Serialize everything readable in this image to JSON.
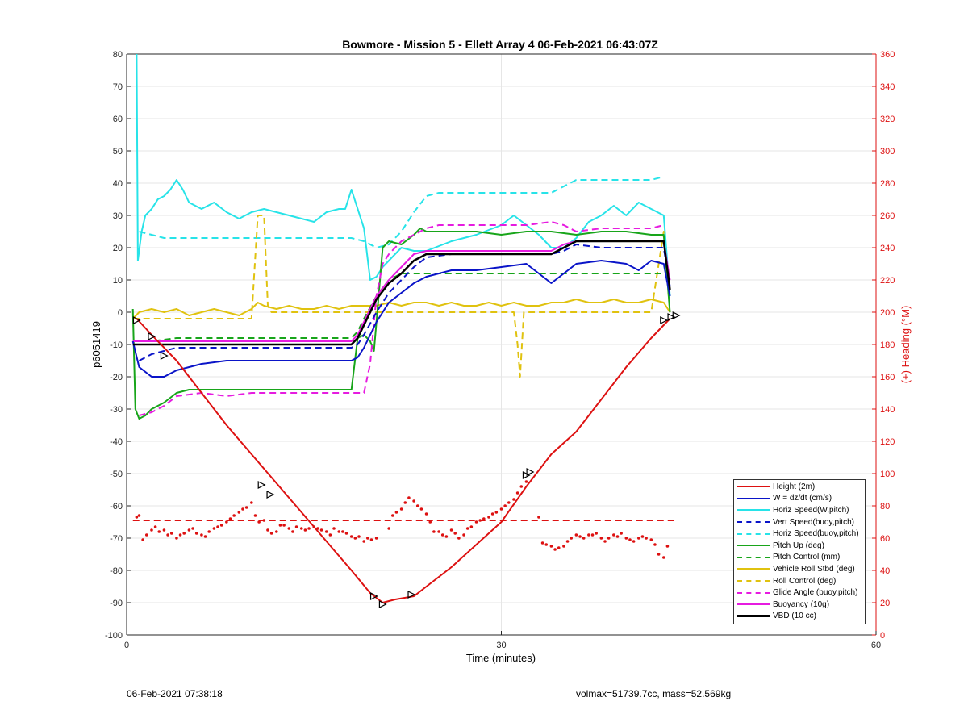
{
  "chart_data": {
    "type": "line",
    "title": "Bowmore - Mission 5 - Ellett Array 4 06-Feb-2021 06:43:07Z",
    "xlabel": "Time (minutes)",
    "ylabel": "p6051419",
    "y2label": "(+) Heading (°M)",
    "xlim": [
      0,
      60
    ],
    "ylim": [
      -100,
      80
    ],
    "y2lim": [
      0,
      360
    ],
    "x_ticks": [
      "0",
      "30",
      "60"
    ],
    "x_tick_values": [
      0,
      30,
      60
    ],
    "y_ticks": [
      80,
      70,
      60,
      50,
      40,
      30,
      20,
      10,
      0,
      -10,
      -20,
      -30,
      -40,
      -50,
      -60,
      -70,
      -80,
      -90,
      -100
    ],
    "y2_ticks": [
      360,
      340,
      320,
      300,
      280,
      260,
      240,
      220,
      200,
      180,
      160,
      140,
      120,
      100,
      80,
      60,
      40,
      20,
      0
    ],
    "grid": true,
    "legend_position": "bottom-right",
    "series": [
      {
        "name": "Height (2m)",
        "color": "#dd1111",
        "style": "solid",
        "width": 2,
        "x": [
          0.8,
          2,
          4,
          6,
          8,
          10,
          12,
          14,
          16,
          18,
          19.5,
          20.5,
          21.5,
          23,
          24,
          26,
          28,
          30,
          32,
          34,
          36,
          38,
          40,
          42,
          43.5
        ],
        "y": [
          -2,
          -7,
          -15,
          -25,
          -35,
          -44,
          -53,
          -62,
          -71,
          -80,
          -87,
          -90,
          -89,
          -88,
          -85,
          -79,
          -72,
          -65,
          -54,
          -44,
          -37,
          -27,
          -17,
          -8,
          -2
        ]
      },
      {
        "name": "W = dz/dt (cm/s)",
        "color": "#0a14c8",
        "style": "solid",
        "width": 2,
        "x": [
          0.5,
          1,
          2,
          3,
          4,
          6,
          8,
          10,
          12,
          14,
          16,
          18,
          18.5,
          19,
          20,
          21,
          22,
          23,
          24,
          25,
          26,
          28,
          30,
          32,
          33,
          34,
          35,
          36,
          38,
          40,
          41,
          42,
          43,
          43.5
        ],
        "y": [
          -9,
          -17,
          -20,
          -20,
          -18,
          -16,
          -15,
          -15,
          -15,
          -15,
          -15,
          -15,
          -14,
          -11,
          -3,
          3,
          6,
          9,
          11,
          12,
          13,
          13,
          14,
          15,
          12,
          9,
          12,
          15,
          16,
          15,
          13,
          16,
          15,
          5
        ]
      },
      {
        "name": "Horiz Speed(W,pitch)",
        "color": "#27e3e8",
        "style": "solid",
        "width": 2,
        "x": [
          0.8,
          0.9,
          1.2,
          1.5,
          2,
          2.5,
          3,
          3.5,
          4,
          4.5,
          5,
          6,
          7,
          8,
          9,
          10,
          11,
          12,
          14,
          15,
          16,
          17,
          17.5,
          18,
          19,
          19.5,
          20,
          20.5,
          21,
          22,
          23,
          24,
          26,
          28,
          30,
          31,
          32,
          33,
          34,
          35,
          36,
          37,
          38,
          39,
          40,
          41,
          42,
          43,
          43.5
        ],
        "y": [
          80,
          16,
          25,
          30,
          32,
          35,
          36,
          38,
          41,
          38,
          34,
          32,
          34,
          31,
          29,
          31,
          32,
          31,
          29,
          28,
          31,
          32,
          32,
          38,
          26,
          10,
          11,
          14,
          16,
          20,
          19,
          19,
          22,
          24,
          27,
          30,
          27,
          24,
          20,
          20,
          23,
          28,
          30,
          33,
          30,
          34,
          32,
          30,
          5
        ]
      },
      {
        "name": "Vert Speed(buoy,pitch)",
        "color": "#0a14c8",
        "style": "dashed",
        "width": 2,
        "x": [
          1,
          2,
          3,
          4,
          6,
          8,
          10,
          12,
          14,
          16,
          18,
          18.5,
          19,
          20,
          21,
          22,
          23,
          24,
          26,
          28,
          30,
          32,
          34,
          35,
          36,
          38,
          40,
          42,
          43,
          43.5
        ],
        "y": [
          -15,
          -13,
          -12,
          -11,
          -11,
          -11,
          -11,
          -11,
          -11,
          -11,
          -11,
          -10,
          -7,
          0,
          6,
          10,
          14,
          17,
          18,
          18,
          18,
          18,
          18,
          19,
          21,
          20,
          20,
          20,
          20,
          8
        ]
      },
      {
        "name": "Horiz Speed(buoy,pitch)",
        "color": "#27e3e8",
        "style": "dashed",
        "width": 2,
        "x": [
          1,
          2,
          3,
          4,
          6,
          8,
          10,
          12,
          14,
          16,
          18,
          19,
          20,
          21,
          22,
          23,
          24,
          25,
          26,
          28,
          30,
          32,
          34,
          35,
          36,
          38,
          40,
          42,
          43
        ],
        "y": [
          25,
          24,
          23,
          23,
          23,
          23,
          23,
          23,
          23,
          23,
          23,
          22,
          20,
          21,
          25,
          31,
          36,
          37,
          37,
          37,
          37,
          37,
          37,
          39,
          41,
          41,
          41,
          41,
          42
        ]
      },
      {
        "name": "Pitch Up (deg)",
        "color": "#18a51a",
        "style": "solid",
        "width": 2,
        "x": [
          0.5,
          0.7,
          1,
          1.5,
          2,
          3,
          4,
          5,
          6,
          8,
          10,
          12,
          14,
          16,
          18,
          18.5,
          19,
          19.5,
          19.8,
          20,
          20.5,
          21,
          22,
          23,
          23.5,
          24,
          26,
          28,
          30,
          32,
          34,
          36,
          38,
          40,
          42,
          43,
          43.5
        ],
        "y": [
          1,
          -30,
          -33,
          -32,
          -30,
          -28,
          -25,
          -24,
          -24,
          -24,
          -24,
          -24,
          -24,
          -24,
          -24,
          -8,
          -7,
          -9,
          -12,
          -3,
          20,
          22,
          21,
          24,
          26,
          25,
          25,
          25,
          24,
          25,
          25,
          24,
          25,
          25,
          24,
          24,
          0
        ]
      },
      {
        "name": "Pitch Control (mm)",
        "color": "#18a51a",
        "style": "dashed",
        "width": 2,
        "x": [
          0.5,
          1,
          2,
          4,
          6,
          8,
          10,
          12,
          14,
          16,
          18,
          18.5,
          19,
          20,
          21,
          22,
          23,
          24,
          26,
          28,
          30,
          32,
          34,
          36,
          38,
          40,
          42,
          43
        ],
        "y": [
          -9,
          -9,
          -9,
          -8,
          -8,
          -8,
          -8,
          -8,
          -8,
          -8,
          -8,
          -6,
          -2,
          5,
          10,
          12,
          12,
          12,
          12,
          12,
          12,
          12,
          12,
          12,
          12,
          12,
          12,
          12
        ]
      },
      {
        "name": "Vehicle Roll Stbd (deg)",
        "color": "#e0c20f",
        "style": "solid",
        "width": 2,
        "x": [
          0.5,
          1,
          2,
          3,
          4,
          5,
          6,
          7,
          8,
          9,
          10,
          10.5,
          11,
          12,
          13,
          14,
          15,
          16,
          17,
          18,
          19,
          20,
          21,
          22,
          23,
          24,
          25,
          26,
          27,
          28,
          29,
          30,
          31,
          32,
          33,
          34,
          35,
          36,
          37,
          38,
          39,
          40,
          41,
          42,
          43,
          43.5
        ],
        "y": [
          -2,
          0,
          1,
          0,
          1,
          -1,
          0,
          1,
          0,
          -1,
          1,
          3,
          2,
          1,
          2,
          1,
          1,
          2,
          1,
          2,
          2,
          2,
          3,
          2,
          3,
          3,
          2,
          3,
          2,
          2,
          3,
          2,
          3,
          2,
          2,
          3,
          3,
          4,
          3,
          3,
          4,
          3,
          3,
          4,
          3,
          0
        ]
      },
      {
        "name": "Roll Control (deg)",
        "color": "#e0c20f",
        "style": "dashed",
        "width": 2,
        "x": [
          0.5,
          2,
          4,
          6,
          8,
          10,
          10.5,
          11,
          11.3,
          11.6,
          12,
          14,
          16,
          18,
          20,
          22,
          24,
          26,
          28,
          30,
          31,
          31.3,
          31.5,
          31.8,
          32,
          32.5,
          34,
          36,
          38,
          40,
          42,
          43,
          43.5
        ],
        "y": [
          -2,
          -2,
          -2,
          -2,
          -2,
          -2,
          30,
          30,
          2,
          0,
          0,
          0,
          0,
          0,
          0,
          0,
          0,
          0,
          0,
          0,
          0,
          -10,
          -20,
          0,
          0,
          0,
          0,
          0,
          0,
          0,
          0,
          25,
          0
        ]
      },
      {
        "name": "Glide Angle (buoy,pitch)",
        "color": "#e61be0",
        "style": "dashed",
        "width": 2,
        "x": [
          1,
          2,
          3,
          4,
          6,
          8,
          10,
          12,
          14,
          16,
          18,
          19,
          19.5,
          20,
          20.5,
          21,
          22,
          23,
          24,
          25,
          26,
          28,
          30,
          32,
          34,
          35,
          36,
          38,
          40,
          42,
          43
        ],
        "y": [
          -32,
          -31,
          -29,
          -26,
          -25,
          -26,
          -25,
          -25,
          -25,
          -25,
          -25,
          -25,
          -16,
          5,
          15,
          18,
          22,
          24,
          26,
          27,
          27,
          27,
          27,
          27,
          28,
          27,
          25,
          26,
          26,
          26,
          27
        ]
      },
      {
        "name": "Buoyancy (10g)",
        "color": "#e61be0",
        "style": "solid",
        "width": 2,
        "x": [
          0.5,
          2,
          4,
          6,
          8,
          10,
          12,
          14,
          16,
          18,
          18.5,
          19,
          20,
          21,
          22,
          23,
          24,
          25,
          26,
          28,
          30,
          32,
          34,
          35,
          36,
          38,
          40,
          42,
          43,
          43.5
        ],
        "y": [
          -9,
          -9,
          -9,
          -9,
          -9,
          -9,
          -9,
          -9,
          -9,
          -9,
          -7,
          -3,
          5,
          10,
          14,
          18,
          19,
          19,
          19,
          19,
          19,
          19,
          19,
          21,
          22,
          22,
          22,
          22,
          22,
          10
        ]
      },
      {
        "name": "VBD (10 cc)",
        "color": "#000000",
        "style": "solid",
        "width": 2.5,
        "x": [
          0.5,
          2,
          4,
          6,
          8,
          10,
          12,
          14,
          16,
          18,
          18.5,
          19,
          20,
          21,
          22,
          23,
          24,
          25,
          26,
          28,
          30,
          32,
          34,
          35,
          36,
          38,
          40,
          42,
          43,
          43.5
        ],
        "y": [
          -10,
          -10,
          -10,
          -10,
          -10,
          -10,
          -10,
          -10,
          -10,
          -10,
          -8,
          -4,
          4,
          9,
          12,
          16,
          18,
          18,
          18,
          18,
          18,
          18,
          18,
          20,
          22,
          22,
          22,
          22,
          22,
          7
        ]
      }
    ],
    "heading_dotted": {
      "color": "#dd1111",
      "x": [
        0.8,
        1,
        1.3,
        1.6,
        2,
        2.3,
        2.6,
        3,
        3.3,
        3.6,
        4,
        4.3,
        4.6,
        5,
        5.3,
        5.6,
        6,
        6.3,
        6.6,
        7,
        7.3,
        7.6,
        8,
        8.3,
        8.6,
        9,
        9.3,
        9.6,
        10,
        10.3,
        10.6,
        11,
        11.3,
        11.6,
        12,
        12.3,
        12.6,
        13,
        13.3,
        13.6,
        14,
        14.3,
        14.6,
        15,
        15.3,
        15.6,
        16,
        16.3,
        16.6,
        17,
        17.3,
        17.6,
        18,
        18.3,
        18.6,
        19,
        19.3,
        19.6,
        20,
        21,
        21.3,
        21.6,
        22,
        22.3,
        22.6,
        23,
        23.3,
        23.6,
        24,
        24.3,
        24.6,
        25,
        25.3,
        25.6,
        26,
        26.3,
        26.6,
        27,
        27.3,
        27.6,
        28,
        28.3,
        28.6,
        29,
        29.3,
        29.6,
        30,
        30.3,
        30.6,
        31,
        31.3,
        31.6,
        32,
        33,
        33.3,
        33.6,
        34,
        34.3,
        34.6,
        35,
        35.3,
        35.6,
        36,
        36.3,
        36.6,
        37,
        37.3,
        37.6,
        38,
        38.3,
        38.6,
        39,
        39.3,
        39.6,
        40,
        40.3,
        40.6,
        41,
        41.3,
        41.6,
        42,
        42.3,
        42.6,
        43,
        43.3
      ],
      "y": [
        73,
        74,
        59,
        62,
        65,
        67,
        64,
        65,
        62,
        63,
        60,
        62,
        63,
        65,
        66,
        63,
        62,
        61,
        64,
        66,
        67,
        68,
        70,
        72,
        74,
        76,
        78,
        79,
        82,
        74,
        70,
        71,
        65,
        63,
        64,
        68,
        68,
        66,
        64,
        67,
        66,
        65,
        66,
        67,
        66,
        65,
        64,
        62,
        66,
        64,
        64,
        63,
        61,
        60,
        61,
        58,
        60,
        59,
        60,
        66,
        74,
        76,
        78,
        82,
        85,
        83,
        80,
        78,
        75,
        70,
        64,
        64,
        62,
        61,
        65,
        63,
        60,
        62,
        66,
        67,
        70,
        71,
        72,
        73,
        75,
        76,
        78,
        80,
        82,
        84,
        88,
        92,
        95,
        73,
        57,
        56,
        55,
        53,
        54,
        55,
        58,
        60,
        62,
        61,
        60,
        62,
        62,
        63,
        60,
        58,
        60,
        62,
        61,
        63,
        60,
        59,
        58,
        60,
        61,
        60,
        59,
        56,
        50,
        48,
        55
      ],
      "ylim_axis": "right"
    },
    "heading_dashed": {
      "color": "#dd1111",
      "y": 71,
      "x": [
        0.5,
        44
      ]
    },
    "markers": {
      "triangles_x": [
        0.8,
        2,
        3,
        10.8,
        11.5,
        19.8,
        20.5,
        22.8,
        32,
        32.3,
        43,
        43.6,
        44
      ],
      "triangles_y": [
        -2.5,
        -7.5,
        -13.5,
        -53.5,
        -56.5,
        -88,
        -90.5,
        -87.5,
        -50.5,
        -49.5,
        -2.5,
        -1.5,
        -1
      ]
    }
  },
  "footer": {
    "left": "06-Feb-2021 07:38:18",
    "right": "volmax=51739.7cc, mass=52.569kg"
  }
}
